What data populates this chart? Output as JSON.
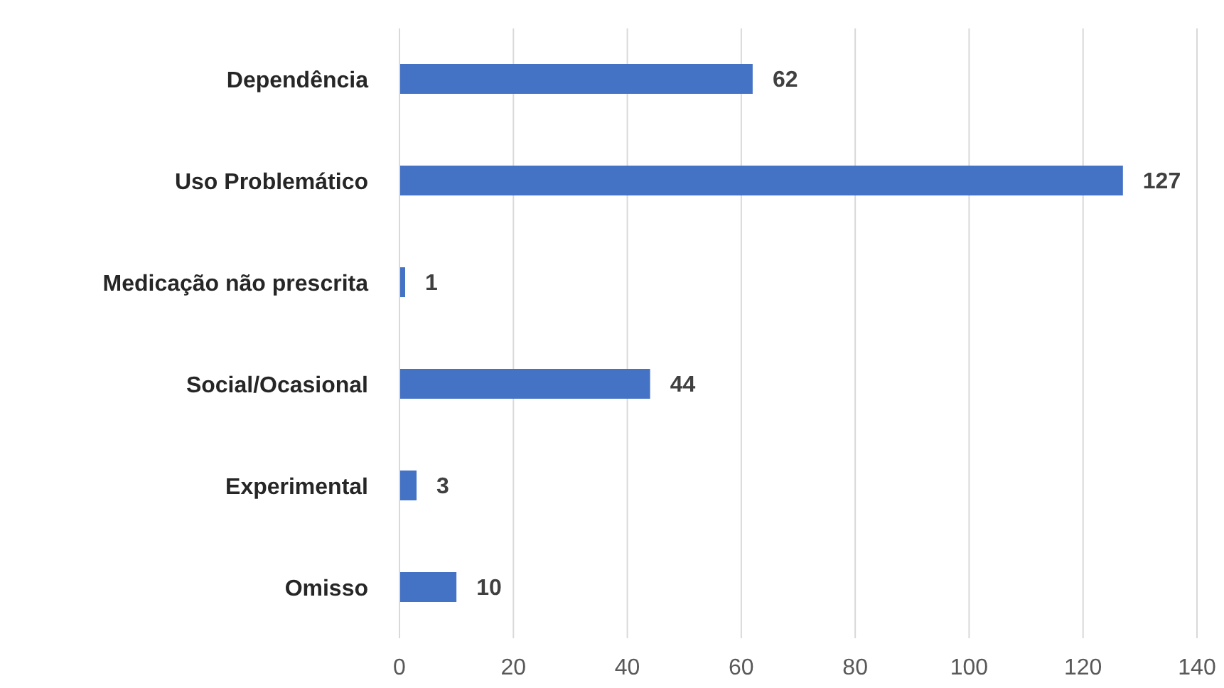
{
  "chart_data": {
    "type": "bar",
    "orientation": "horizontal",
    "categories": [
      "Dependência",
      "Uso Problemático",
      "Medicação não prescrita",
      "Social/Ocasional",
      "Experimental",
      "Omisso"
    ],
    "values": [
      62,
      127,
      1,
      44,
      3,
      10
    ],
    "color": "#4472c4",
    "xlim": [
      0,
      140
    ],
    "xticks": [
      0,
      20,
      40,
      60,
      80,
      100,
      120,
      140
    ],
    "grid": "x",
    "data_labels": true
  }
}
